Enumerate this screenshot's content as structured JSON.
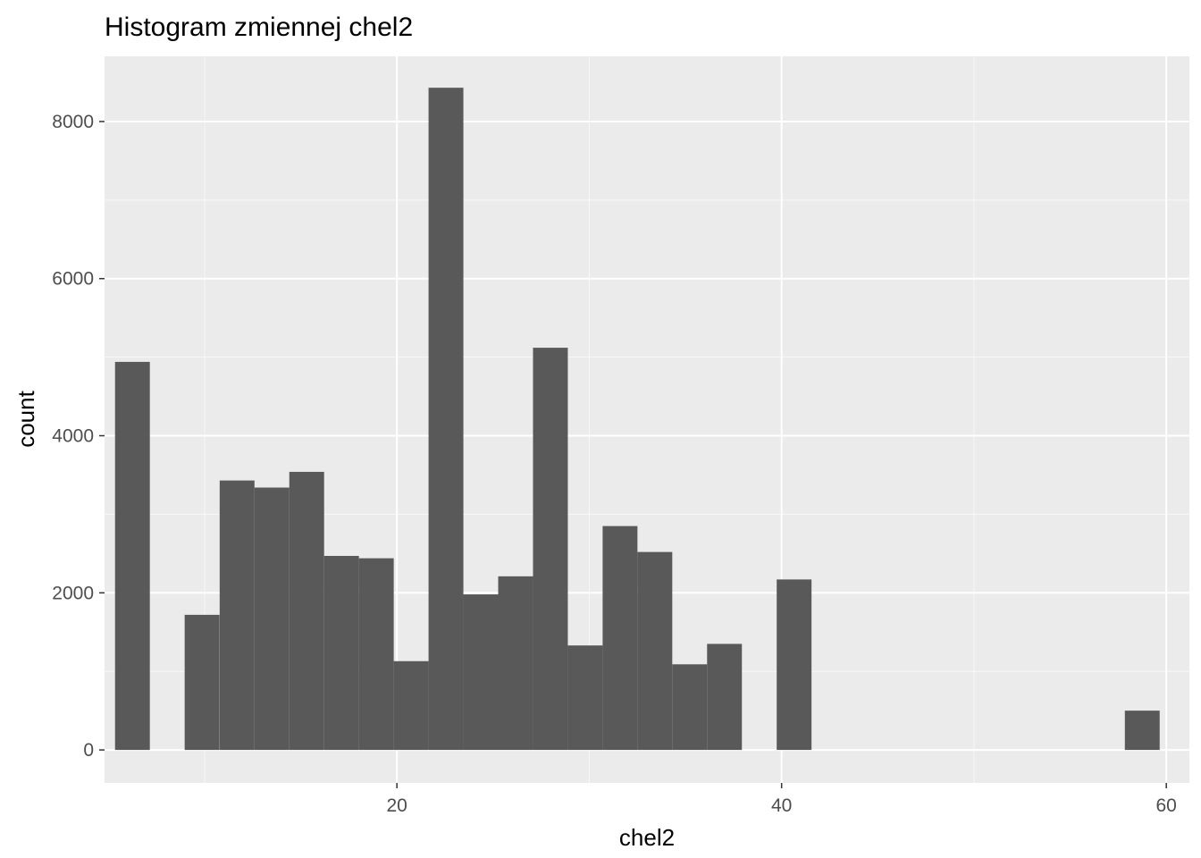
{
  "chart_data": {
    "type": "bar",
    "title": "Histogram zmiennej  chel2",
    "xlabel": "chel2",
    "ylabel": "count",
    "xlim": [
      4.8,
      61.2
    ],
    "ylim": [
      -420,
      8830
    ],
    "x_ticks": [
      20,
      40,
      60
    ],
    "y_ticks": [
      0,
      2000,
      4000,
      6000,
      8000
    ],
    "x_minor_gridlines": [
      10,
      30,
      50
    ],
    "y_minor_gridlines": [
      1000,
      3000,
      5000,
      7000
    ],
    "grid": true,
    "legend": "none",
    "bin_width": 1.81,
    "bins": [
      {
        "x": 6.25,
        "count": 4940
      },
      {
        "x": 9.87,
        "count": 1720
      },
      {
        "x": 11.69,
        "count": 3430
      },
      {
        "x": 13.5,
        "count": 3340
      },
      {
        "x": 15.31,
        "count": 3540
      },
      {
        "x": 17.12,
        "count": 2470
      },
      {
        "x": 18.93,
        "count": 2440
      },
      {
        "x": 20.74,
        "count": 1130
      },
      {
        "x": 22.55,
        "count": 8430
      },
      {
        "x": 24.36,
        "count": 1980
      },
      {
        "x": 26.17,
        "count": 2210
      },
      {
        "x": 27.98,
        "count": 5120
      },
      {
        "x": 29.79,
        "count": 1330
      },
      {
        "x": 31.6,
        "count": 2850
      },
      {
        "x": 33.41,
        "count": 2520
      },
      {
        "x": 35.22,
        "count": 1090
      },
      {
        "x": 37.03,
        "count": 1350
      },
      {
        "x": 40.65,
        "count": 2170
      },
      {
        "x": 58.75,
        "count": 500
      }
    ],
    "colors": {
      "panel": "#ebebeb",
      "grid_major": "#ffffff",
      "bar_fill": "#595959",
      "tick": "#333333"
    }
  }
}
